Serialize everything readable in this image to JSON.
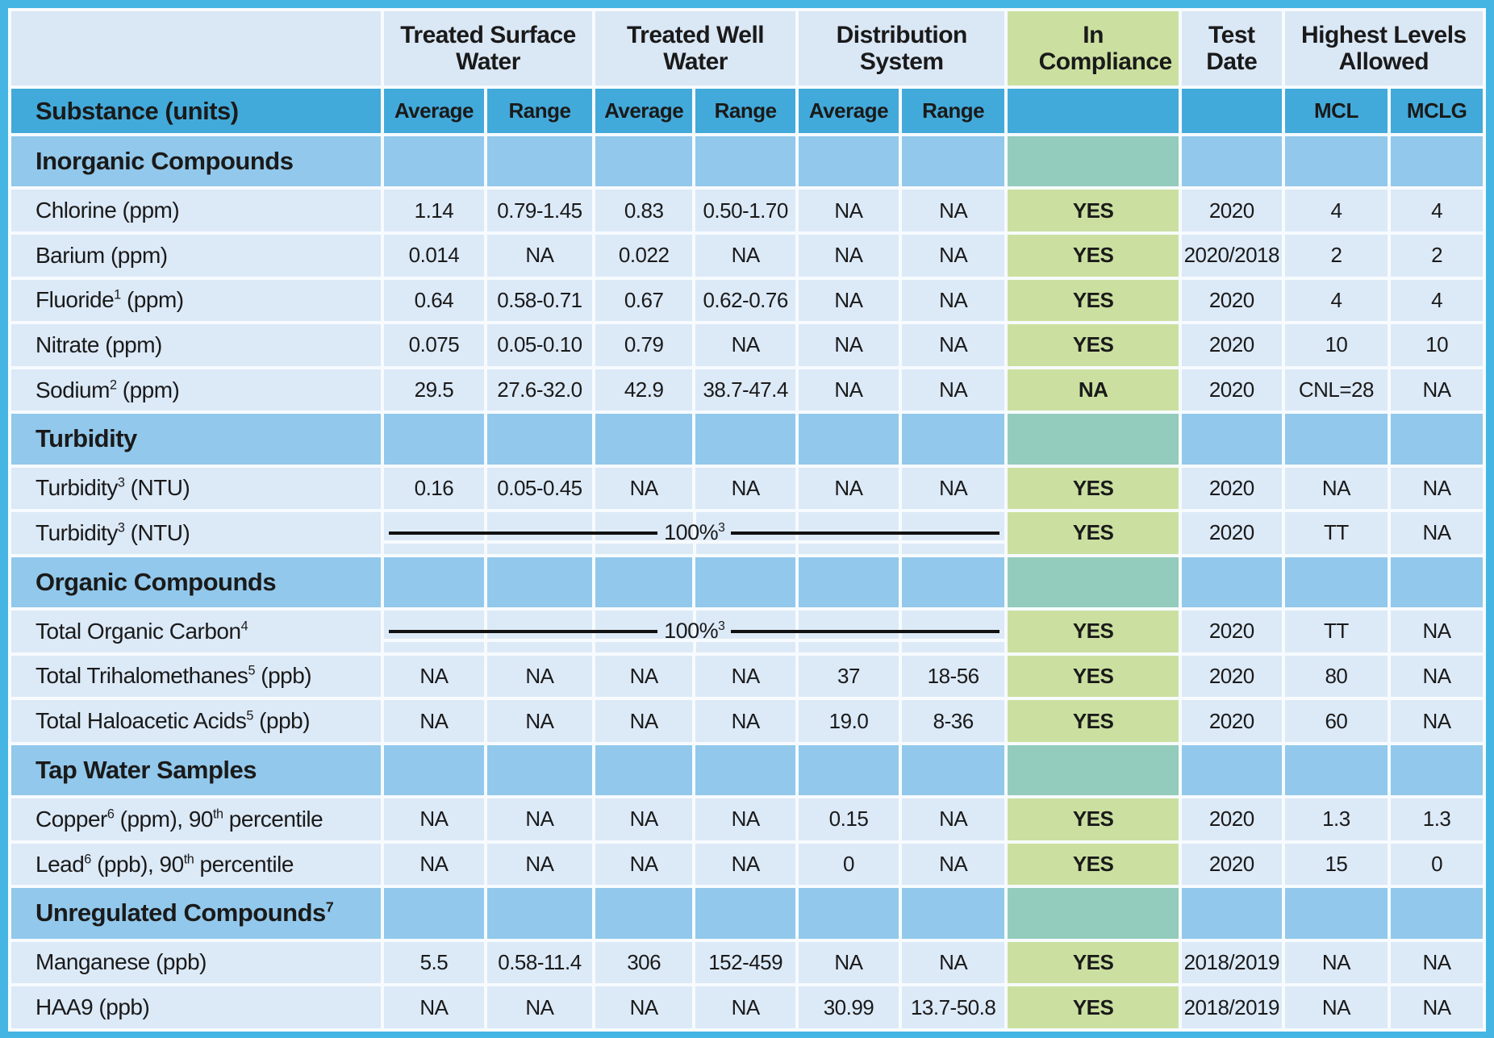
{
  "colors": {
    "frame_border": "#45B5E4",
    "header_blue": "#42AADA",
    "section_blue": "#92C8EB",
    "data_row_blue": "#DCE9F7",
    "top_header_light": "#DAE7F5",
    "compliance_green": "#CBE0A0",
    "compliance_teal": "#93CBBC",
    "gridline_white": "#F7FBFE",
    "text": "#1A1A1A"
  },
  "table": {
    "group_header": [
      {
        "label": "Treated Surface Water",
        "style": "light",
        "span": 2
      },
      {
        "label": "Treated Well Water",
        "style": "light",
        "span": 2
      },
      {
        "label": "Distribution System",
        "style": "light",
        "span": 2
      },
      {
        "label": "In Compliance",
        "style": "green",
        "span": 1
      },
      {
        "label": "Test Date",
        "style": "light",
        "span": 1
      },
      {
        "label": "Highest Levels Allowed",
        "style": "light",
        "span": 2
      }
    ],
    "header_row": {
      "substance": "Substance (units)",
      "cols": [
        "Average",
        "Range",
        "Average",
        "Range",
        "Average",
        "Range",
        "",
        "",
        "MCL",
        "MCLG"
      ]
    },
    "rows": [
      {
        "type": "section",
        "name": "Inorganic Compounds"
      },
      {
        "type": "data",
        "name": "Chlorine (ppm)",
        "values": [
          "1.14",
          "0.79-1.45",
          "0.83",
          "0.50-1.70",
          "NA",
          "NA"
        ],
        "compliance": "YES",
        "date": "2020",
        "mcl": "4",
        "mclg": "4"
      },
      {
        "type": "data",
        "name": "Barium (ppm)",
        "values": [
          "0.014",
          "NA",
          "0.022",
          "NA",
          "NA",
          "NA"
        ],
        "compliance": "YES",
        "date": "2020/2018",
        "mcl": "2",
        "mclg": "2"
      },
      {
        "type": "data",
        "name": "Fluoride^1^ (ppm)",
        "values": [
          "0.64",
          "0.58-0.71",
          "0.67",
          "0.62-0.76",
          "NA",
          "NA"
        ],
        "compliance": "YES",
        "date": "2020",
        "mcl": "4",
        "mclg": "4"
      },
      {
        "type": "data",
        "name": "Nitrate (ppm)",
        "values": [
          "0.075",
          "0.05-0.10",
          "0.79",
          "NA",
          "NA",
          "NA"
        ],
        "compliance": "YES",
        "date": "2020",
        "mcl": "10",
        "mclg": "10"
      },
      {
        "type": "data",
        "name": "Sodium^2^ (ppm)",
        "values": [
          "29.5",
          "27.6-32.0",
          "42.9",
          "38.7-47.4",
          "NA",
          "NA"
        ],
        "compliance": "NA",
        "date": "2020",
        "mcl": "CNL=28",
        "mclg": "NA"
      },
      {
        "type": "section",
        "name": "Turbidity"
      },
      {
        "type": "data",
        "name": "Turbidity^3^ (NTU)",
        "values": [
          "0.16",
          "0.05-0.45",
          "NA",
          "NA",
          "NA",
          "NA"
        ],
        "compliance": "YES",
        "date": "2020",
        "mcl": "NA",
        "mclg": "NA"
      },
      {
        "type": "span",
        "name": "Turbidity^3^ (NTU)",
        "span_text": "100%^3^",
        "compliance": "YES",
        "date": "2020",
        "mcl": "TT",
        "mclg": "NA"
      },
      {
        "type": "section",
        "name": "Organic Compounds"
      },
      {
        "type": "span",
        "name": "Total Organic Carbon^4^",
        "span_text": "100%^3^",
        "compliance": "YES",
        "date": "2020",
        "mcl": "TT",
        "mclg": "NA"
      },
      {
        "type": "data",
        "name": "Total Trihalomethanes^5^ (ppb)",
        "values": [
          "NA",
          "NA",
          "NA",
          "NA",
          "37",
          "18-56"
        ],
        "compliance": "YES",
        "date": "2020",
        "mcl": "80",
        "mclg": "NA"
      },
      {
        "type": "data",
        "name": "Total Haloacetic Acids^5^ (ppb)",
        "values": [
          "NA",
          "NA",
          "NA",
          "NA",
          "19.0",
          "8-36"
        ],
        "compliance": "YES",
        "date": "2020",
        "mcl": "60",
        "mclg": "NA"
      },
      {
        "type": "section",
        "name": "Tap Water Samples"
      },
      {
        "type": "data",
        "name": "Copper^6^ (ppm), 90^th^ percentile",
        "values": [
          "NA",
          "NA",
          "NA",
          "NA",
          "0.15",
          "NA"
        ],
        "compliance": "YES",
        "date": "2020",
        "mcl": "1.3",
        "mclg": "1.3"
      },
      {
        "type": "data",
        "name": "Lead^6^ (ppb), 90^th^ percentile",
        "values": [
          "NA",
          "NA",
          "NA",
          "NA",
          "0",
          "NA"
        ],
        "compliance": "YES",
        "date": "2020",
        "mcl": "15",
        "mclg": "0"
      },
      {
        "type": "section",
        "name": "Unregulated Compounds^7^"
      },
      {
        "type": "data",
        "name": "Manganese (ppb)",
        "values": [
          "5.5",
          "0.58-11.4",
          "306",
          "152-459",
          "NA",
          "NA"
        ],
        "compliance": "YES",
        "date": "2018/2019",
        "mcl": "NA",
        "mclg": "NA"
      },
      {
        "type": "data",
        "name": "HAA9  (ppb)",
        "values": [
          "NA",
          "NA",
          "NA",
          "NA",
          "30.99",
          "13.7-50.8"
        ],
        "compliance": "YES",
        "date": "2018/2019",
        "mcl": "NA",
        "mclg": "NA"
      }
    ]
  }
}
